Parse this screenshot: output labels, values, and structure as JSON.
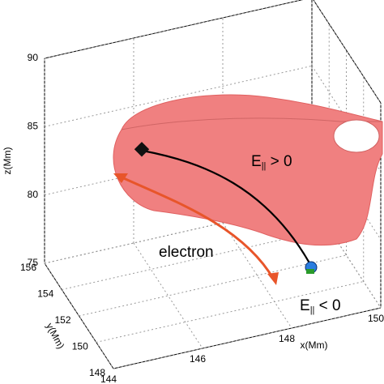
{
  "chart_data": {
    "type": "surface3d",
    "xlabel": "x(Mm)",
    "ylabel": "y(Mm)",
    "zlabel": "z(Mm)",
    "xlim": [
      144,
      150
    ],
    "ylim": [
      148,
      156
    ],
    "zlim": [
      75,
      90
    ],
    "xticks": [
      144,
      146,
      148,
      150
    ],
    "yticks": [
      148,
      150,
      152,
      154,
      156
    ],
    "zticks": [
      75,
      80,
      85,
      90
    ],
    "grid": true,
    "surface_color": "#f08080",
    "annotations": [
      {
        "text": "electron",
        "color": "#e8552a"
      },
      {
        "text": "E",
        "subscript": "||",
        "suffix": " > 0"
      },
      {
        "text": "E",
        "subscript": "||",
        "suffix": " < 0"
      }
    ]
  }
}
